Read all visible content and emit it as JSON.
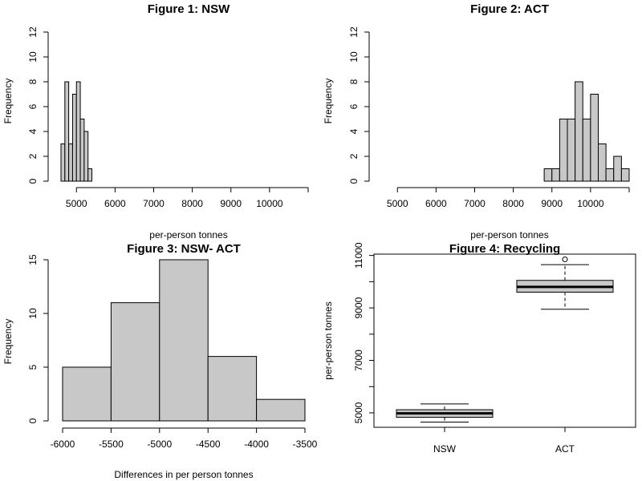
{
  "chart_data": [
    {
      "type": "histogram",
      "title": "Figure 1: NSW",
      "xlabel": "per-person tonnes",
      "ylabel": "Frequency",
      "xticks": [
        5000,
        6000,
        7000,
        8000,
        9000,
        10000
      ],
      "yticks": [
        0,
        2,
        4,
        6,
        8,
        10,
        12
      ],
      "xlim": [
        4600,
        11000
      ],
      "ylim": [
        0,
        12
      ],
      "bins": [
        {
          "start": 4600,
          "end": 4700,
          "count": 3
        },
        {
          "start": 4700,
          "end": 4800,
          "count": 8
        },
        {
          "start": 4800,
          "end": 4900,
          "count": 3
        },
        {
          "start": 4900,
          "end": 5000,
          "count": 7
        },
        {
          "start": 5000,
          "end": 5100,
          "count": 8
        },
        {
          "start": 5100,
          "end": 5200,
          "count": 5
        },
        {
          "start": 5200,
          "end": 5300,
          "count": 4
        },
        {
          "start": 5300,
          "end": 5400,
          "count": 1
        }
      ]
    },
    {
      "type": "histogram",
      "title": "Figure 2: ACT",
      "xlabel": "per-person tonnes",
      "ylabel": "Frequency",
      "xticks": [
        5000,
        6000,
        7000,
        8000,
        9000,
        10000
      ],
      "yticks": [
        0,
        2,
        4,
        6,
        8,
        10,
        12
      ],
      "xlim": [
        4600,
        11000
      ],
      "ylim": [
        0,
        12
      ],
      "bins": [
        {
          "start": 8800,
          "end": 9000,
          "count": 1
        },
        {
          "start": 9000,
          "end": 9200,
          "count": 1
        },
        {
          "start": 9200,
          "end": 9400,
          "count": 5
        },
        {
          "start": 9400,
          "end": 9600,
          "count": 5
        },
        {
          "start": 9600,
          "end": 9800,
          "count": 8
        },
        {
          "start": 9800,
          "end": 10000,
          "count": 5
        },
        {
          "start": 10000,
          "end": 10200,
          "count": 7
        },
        {
          "start": 10200,
          "end": 10400,
          "count": 3
        },
        {
          "start": 10400,
          "end": 10600,
          "count": 1
        },
        {
          "start": 10600,
          "end": 10800,
          "count": 2
        },
        {
          "start": 10800,
          "end": 11000,
          "count": 1
        }
      ]
    },
    {
      "type": "histogram",
      "title": "Figure 3: NSW- ACT",
      "xlabel": "Differences in per person tonnes",
      "ylabel": "Frequency",
      "xticks": [
        -6000,
        -5500,
        -5000,
        -4500,
        -4000,
        -3500
      ],
      "yticks": [
        0,
        5,
        10,
        15
      ],
      "xlim": [
        -6000,
        -3500
      ],
      "ylim": [
        0,
        15
      ],
      "bins": [
        {
          "start": -6000,
          "end": -5500,
          "count": 5
        },
        {
          "start": -5500,
          "end": -5000,
          "count": 11
        },
        {
          "start": -5000,
          "end": -4500,
          "count": 15
        },
        {
          "start": -4500,
          "end": -4000,
          "count": 6
        },
        {
          "start": -4000,
          "end": -3500,
          "count": 2
        }
      ]
    },
    {
      "type": "boxplot",
      "title": "Figure 4: Recycling",
      "xlabel": "",
      "ylabel": "per-person tonnes",
      "categories": [
        "NSW",
        "ACT"
      ],
      "yticks": [
        5000,
        7000,
        9000,
        11000
      ],
      "ylim": [
        4450,
        11050
      ],
      "boxes": [
        {
          "name": "NSW",
          "min": 4650,
          "q1": 4830,
          "median": 4980,
          "q3": 5120,
          "max": 5340,
          "outliers": []
        },
        {
          "name": "ACT",
          "min": 8950,
          "q1": 9600,
          "median": 9800,
          "q3": 10050,
          "max": 10650,
          "outliers": [
            10850
          ]
        }
      ]
    }
  ]
}
